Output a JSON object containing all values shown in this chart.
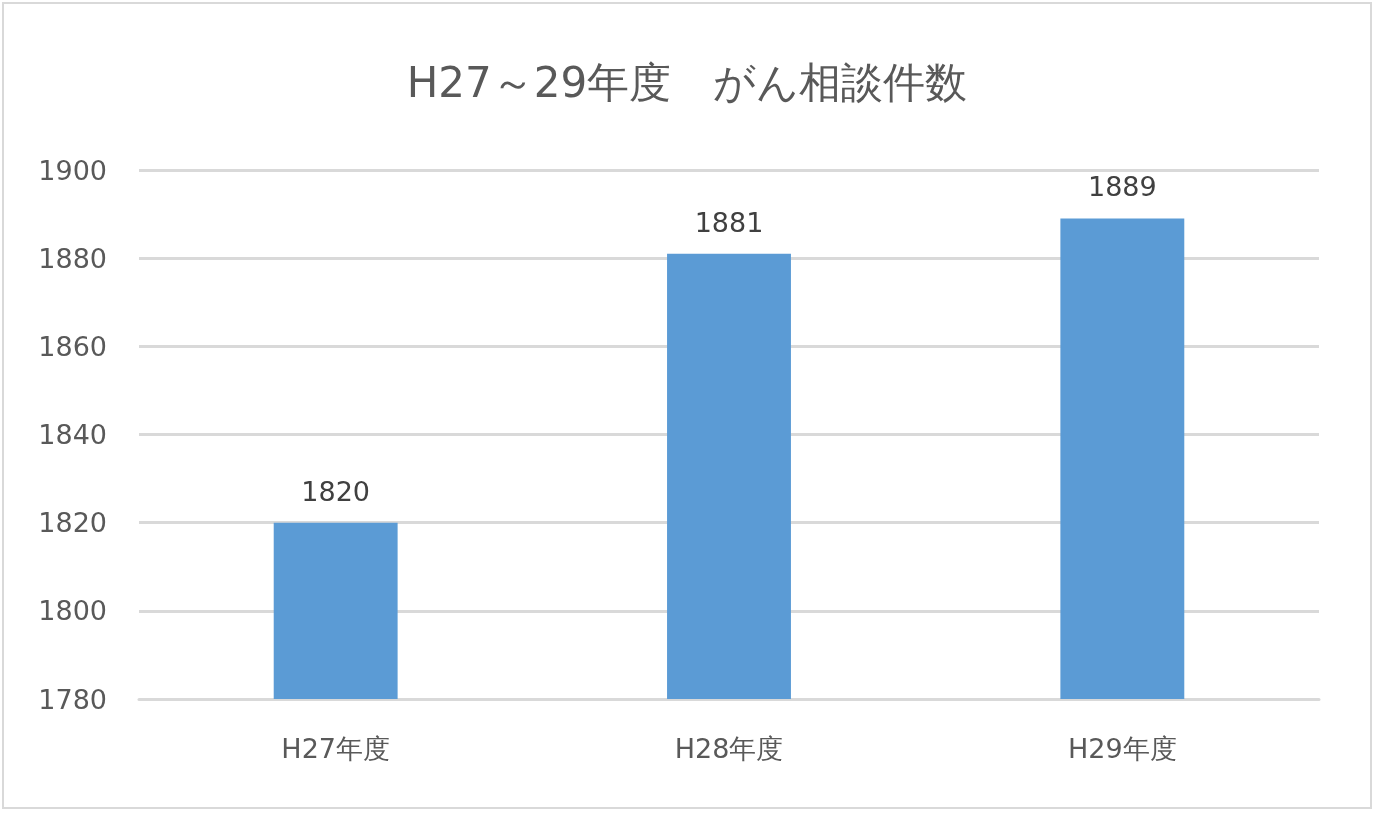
{
  "chart_data": {
    "type": "bar",
    "title": "H27～29年度　がん相談件数",
    "categories": [
      "H27年度",
      "H28年度",
      "H29年度"
    ],
    "values": [
      1820,
      1881,
      1889
    ],
    "color": "#5b9bd5",
    "ylim": [
      1780,
      1900
    ],
    "yticks": [
      1780,
      1800,
      1820,
      1840,
      1860,
      1880,
      1900
    ],
    "grid": "y",
    "data_labels": true
  }
}
